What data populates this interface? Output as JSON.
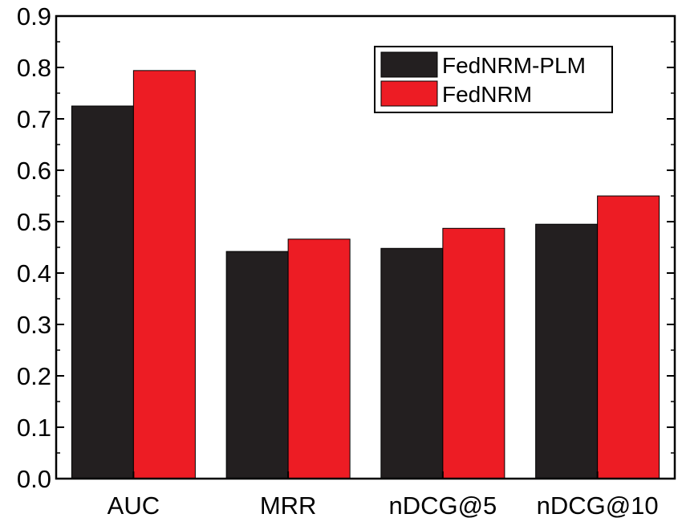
{
  "chart_data": {
    "type": "bar",
    "categories": [
      "AUC",
      "MRR",
      "nDCG@5",
      "nDCG@10"
    ],
    "series": [
      {
        "name": "FedNRM-PLM",
        "values": [
          0.725,
          0.442,
          0.448,
          0.495
        ],
        "color": "#231f20"
      },
      {
        "name": "FedNRM",
        "values": [
          0.794,
          0.466,
          0.487,
          0.55
        ],
        "color": "#ed1c24"
      }
    ],
    "ylim": [
      0.0,
      0.9
    ],
    "yticks": [
      "0.0",
      "0.1",
      "0.2",
      "0.3",
      "0.4",
      "0.5",
      "0.6",
      "0.7",
      "0.8",
      "0.9"
    ],
    "xlabel": "",
    "ylabel": "",
    "title": "",
    "grid": false,
    "legend_position": "top-right"
  }
}
